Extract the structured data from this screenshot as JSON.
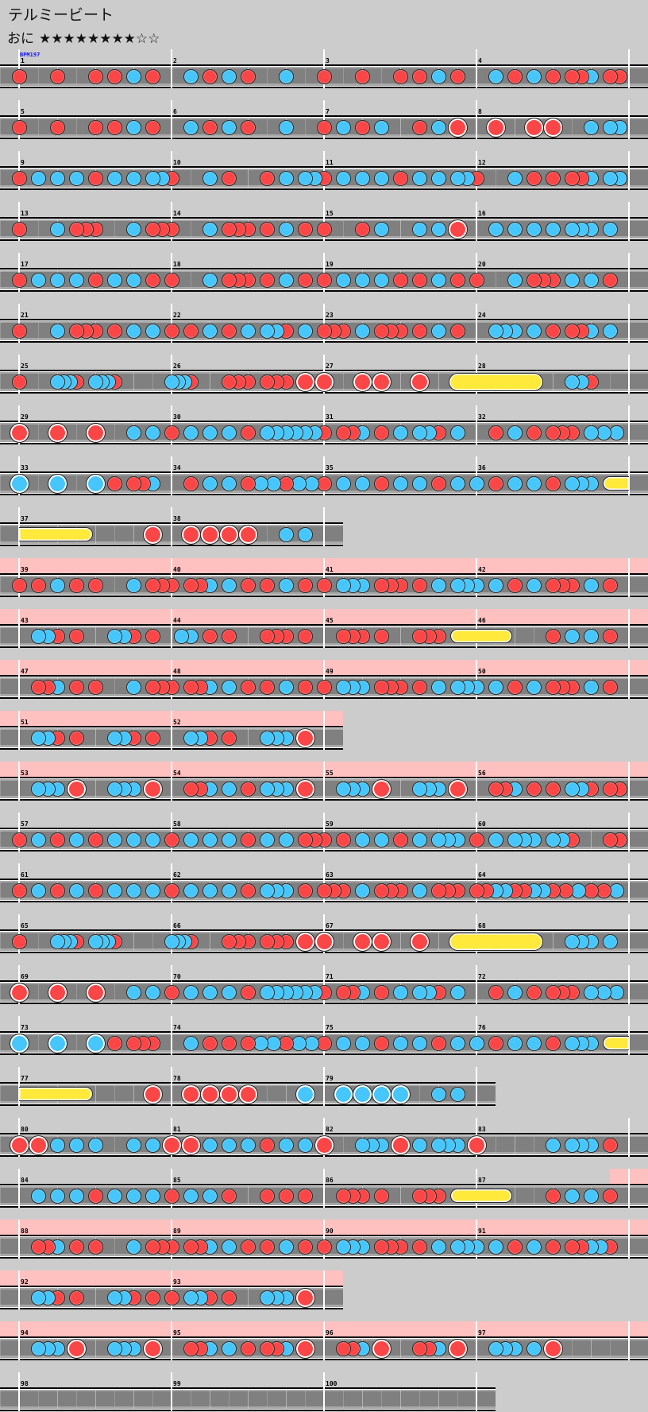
{
  "song": {
    "title": "テルミービート",
    "difficulty": "おに",
    "stars": "★★★★★★★★☆☆",
    "level": 8,
    "level_max": 10
  },
  "chart": {
    "bpm_label": "BPM197",
    "colors": {
      "background": "#cccccc",
      "don": "#fa4646",
      "ka": "#46c6fa",
      "roll": "#ffe93a",
      "gogo": "#ffc0c0",
      "lane": "#808080"
    },
    "note_legend": {
      "d": "don",
      "k": "ka",
      "D": "big don",
      "K": "big ka",
      "r": "roll start",
      "R": "big roll start",
      "e": "roll end",
      ".": "rest"
    },
    "gogo_time": [
      {
        "from_measure": 39,
        "from_beat_fraction": 0,
        "to_measure": 56
      },
      {
        "from_measure": 87,
        "from_beat_fraction": 0.875,
        "to_measure": 97
      }
    ],
    "rows": [
      [
        1,
        2,
        3,
        4
      ],
      [
        5,
        6,
        7,
        8
      ],
      [
        9,
        10,
        11,
        12
      ],
      [
        13,
        14,
        15,
        16
      ],
      [
        17,
        18,
        19,
        20
      ],
      [
        21,
        22,
        23,
        24
      ],
      [
        25,
        26,
        27,
        28
      ],
      [
        29,
        30,
        31,
        32
      ],
      [
        33,
        34,
        35,
        36
      ],
      [
        37,
        38
      ],
      [
        39,
        40,
        41,
        42
      ],
      [
        43,
        44,
        45,
        46
      ],
      [
        47,
        48,
        49,
        50
      ],
      [
        51,
        52
      ],
      [
        53,
        54,
        55,
        56
      ],
      [
        57,
        58,
        59,
        60
      ],
      [
        61,
        62,
        63,
        64
      ],
      [
        65,
        66,
        67,
        68
      ],
      [
        69,
        70,
        71,
        72
      ],
      [
        73,
        74,
        75,
        76
      ],
      [
        77,
        78,
        79
      ],
      [
        80,
        81,
        82,
        83
      ],
      [
        84,
        85,
        86,
        87
      ],
      [
        88,
        89,
        90,
        91
      ],
      [
        92,
        93
      ],
      [
        94,
        95,
        96,
        97
      ],
      [
        98,
        99,
        100
      ]
    ],
    "measures": [
      {
        "n": "1",
        "notes": "d...d...d.d.k.d."
      },
      {
        "n": "2",
        "notes": "..k.d.k.d...k..."
      },
      {
        "n": "3",
        "notes": "d...d...d.d.k.d."
      },
      {
        "n": "4",
        "notes": "..k.d.k.d.ddk.dd"
      },
      {
        "n": "5",
        "notes": "d...d...d.d.k.d."
      },
      {
        "n": "6",
        "notes": "..k.d.k.d...k..."
      },
      {
        "n": "7",
        "notes": "d.k.d.k...d.k.D."
      },
      {
        "n": "8",
        "notes": "..D...D.D...k.kk"
      },
      {
        "n": "9",
        "notes": "d.k.k.k.d.k.k.kk"
      },
      {
        "n": "10",
        "notes": "d...k.d...d.k.kk"
      },
      {
        "n": "11",
        "notes": "d.k.k.k.d.k.k.kk"
      },
      {
        "n": "12",
        "notes": "d...k.d.d.ddk.kk"
      },
      {
        "n": "13",
        "notes": "d...k.ddd...k.dd"
      },
      {
        "n": "14",
        "notes": "d...k.ddd.d.k.d."
      },
      {
        "n": "15",
        "notes": "d...d.k...k.k.D."
      },
      {
        "n": "16",
        "notes": "..k.k.k.k.kkk.k."
      },
      {
        "n": "17",
        "notes": "d.k.k.k.d.k.k.d."
      },
      {
        "n": "18",
        "notes": "d...k.ddd.d.k.d."
      },
      {
        "n": "19",
        "notes": "d.k.k.k.d.d.k.d."
      },
      {
        "n": "20",
        "notes": "d...k.ddd.k.k.d."
      },
      {
        "n": "21",
        "notes": "d...k.ddd.d.k.k."
      },
      {
        "n": "22",
        "notes": "d.d.k.d.k.kkd.k."
      },
      {
        "n": "23",
        "notes": "ddd.k.ddd.d.k.d."
      },
      {
        "n": "24",
        "notes": "..kkk.k.d.ddk.k."
      },
      {
        "n": "25",
        "notes": "d.....kkkd..kkkd........"
      },
      {
        "n": "26",
        "notes": "k.k.k.d...........d..d..d.....d..d..d.....D....."
      },
      {
        "n": "27",
        "notes": "D...D.D...D...R."
      },
      {
        "n": "28",
        "notes": "......e...kkd..."
      },
      {
        "n": "29",
        "notes": "D...D...D...k.k."
      },
      {
        "n": "30",
        "notes": "d.k.k.k.d.kkkkkk"
      },
      {
        "n": "31",
        "notes": "d.ddk.d.k.kkd.k."
      },
      {
        "n": "32",
        "notes": "......d.....k.....d.....d..d..d.....k...k...k..."
      },
      {
        "n": "33",
        "notes": "K...K...K.d.ddk."
      },
      {
        "n": "34",
        "notes": "......d.....k.....k.....d...k...k...d...k...k..."
      },
      {
        "n": "35",
        "notes": "d.k.k.d.k.k.d.k."
      },
      {
        "n": "36",
        "notes": "k.d.k.k.d.kkk.r."
      },
      {
        "n": "37",
        "notes": ".......e......D."
      },
      {
        "n": "38",
        "notes": "..D.D.D.D...k.k."
      },
      {
        "n": "39",
        "notes": "d.d.k.d.d...k.dd"
      },
      {
        "n": "40",
        "notes": "d.ddk.k.d.d.k.d."
      },
      {
        "n": "41",
        "notes": "d.kkk.ddd.d.k.kk"
      },
      {
        "n": "42",
        "notes": "k.k.d.k.ddd.k.d."
      },
      {
        "n": "43",
        "notes": "..kkd.d...kkd.d."
      },
      {
        "n": "44",
        "notes": ".kk.d.d...ddd.d."
      },
      {
        "n": "45",
        "notes": "..ddd.d...ddd.r."
      },
      {
        "n": "46",
        "notes": "...e....d.k.k.d."
      },
      {
        "n": "47",
        "notes": "..ddk.d.d...k.dd"
      },
      {
        "n": "48",
        "notes": "d.ddk.k.d.d.k.d."
      },
      {
        "n": "49",
        "notes": "d.kkk.ddd.d.k.kk"
      },
      {
        "n": "50",
        "notes": "k.k.d.k.ddd.k.d."
      },
      {
        "n": "51",
        "notes": "..kkd.d...kkd.d."
      },
      {
        "n": "52",
        "notes": "..kkd.d...kkk.D."
      },
      {
        "n": "53",
        "notes": "..kkk.D...kkk.D."
      },
      {
        "n": "54",
        "notes": "..ddk.k.d.kkk.D."
      },
      {
        "n": "55",
        "notes": "..kkk.D...kkk.D."
      },
      {
        "n": "56",
        "notes": "..ddk.d.d.kkd.dd"
      },
      {
        "n": "57",
        "notes": "d.k.d.k.d.k.k.k."
      },
      {
        "n": "58",
        "notes": "d.k.k.k.d.k.k.dd"
      },
      {
        "n": "59",
        "notes": "d.d.k.k.d.k.kkk."
      },
      {
        "n": "60",
        "notes": "d.k.kkk.kkd...dd"
      },
      {
        "n": "61",
        "notes": "d.k.d.k.d.k.k.k."
      },
      {
        "n": "62",
        "notes": "d.k.k.k.d.kkk.d."
      },
      {
        "n": "63",
        "notes": "ddd.k.ddd.k.ddd."
      },
      {
        "n": "64",
        "notes": "d..d..k..k..d..d..k..k..d...d...k...d...d...k..."
      },
      {
        "n": "65",
        "notes": "d.....kkkd..kkkd........"
      },
      {
        "n": "66",
        "notes": "k.k.k.d...........d..d..d.....d..d..d.....D....."
      },
      {
        "n": "67",
        "notes": "D...D.D...D...R."
      },
      {
        "n": "68",
        "notes": "......e...kkk.k."
      },
      {
        "n": "69",
        "notes": "D...D...D...k.k."
      },
      {
        "n": "70",
        "notes": "d.k.k.k.d.kkkkkk"
      },
      {
        "n": "71",
        "notes": "d.ddk.d.k.kkd.k."
      },
      {
        "n": "72",
        "notes": "......d.....k.....d.....d..d..d.....k...k...k..."
      },
      {
        "n": "73",
        "notes": "K...K...K.d.ddd."
      },
      {
        "n": "74",
        "notes": "......k.....d.....d.....d...k...k...d...k...k..."
      },
      {
        "n": "75",
        "notes": "d.k.k.d.k.k.d.k."
      },
      {
        "n": "76",
        "notes": "k.d.k.k.d.kkk.r."
      },
      {
        "n": "77",
        "notes": ".......e......D."
      },
      {
        "n": "78",
        "notes": "..D.D.D.D.....K."
      },
      {
        "n": "79",
        "notes": "..K.K.K.K...k.k."
      },
      {
        "n": "80",
        "notes": "D.D.k.k.k...k.k."
      },
      {
        "n": "81",
        "notes": "D.D.k.k.k.d.k.k."
      },
      {
        "n": "82",
        "notes": "D...kkk.D.k.kkk."
      },
      {
        "n": "83",
        "notes": "D.......k.kkk.d."
      },
      {
        "n": "84",
        "notes": "..k.k.k.d.k.k.k."
      },
      {
        "n": "85",
        "notes": "d.k.k.d...d.d.d."
      },
      {
        "n": "86",
        "notes": "..ddd.d...ddd.r."
      },
      {
        "n": "87",
        "notes": "...e....d.k.k.d."
      },
      {
        "n": "88",
        "notes": "..ddk.d.d...k.dd"
      },
      {
        "n": "89",
        "notes": "d.ddk.k.d.d.k.d."
      },
      {
        "n": "90",
        "notes": "d.kkk.ddd.d.k.kk"
      },
      {
        "n": "91",
        "notes": "k.k.d.k.d.ddkkd."
      },
      {
        "n": "92",
        "notes": "..kkd.d...kkd.d."
      },
      {
        "n": "93",
        "notes": "d.kkd.d...kkk.D."
      },
      {
        "n": "94",
        "notes": "..kkk.D...kkk.D."
      },
      {
        "n": "95",
        "notes": "..ddk.k.d.ddk.D."
      },
      {
        "n": "96",
        "notes": "..ddk.D...ddk.D."
      },
      {
        "n": "97",
        "notes": "..kkk.k.D......."
      },
      {
        "n": "98",
        "notes": ""
      },
      {
        "n": "99",
        "notes": ""
      },
      {
        "n": "100",
        "notes": ""
      }
    ]
  }
}
